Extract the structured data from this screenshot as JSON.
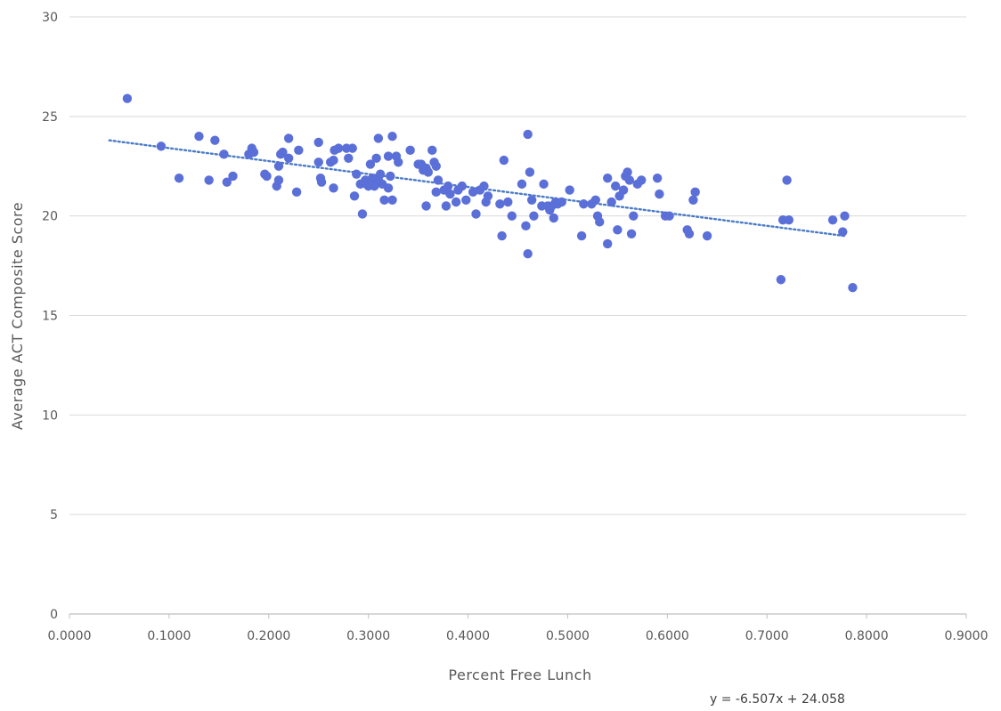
{
  "chart_data": {
    "type": "scatter",
    "title": "",
    "xlabel": "Percent Free Lunch",
    "ylabel": "Average ACT Composite Score",
    "xlim": [
      0,
      0.9
    ],
    "ylim": [
      0,
      30
    ],
    "x_ticks": [
      "0.0000",
      "0.1000",
      "0.2000",
      "0.3000",
      "0.4000",
      "0.5000",
      "0.6000",
      "0.7000",
      "0.8000",
      "0.9000"
    ],
    "y_ticks": [
      "0",
      "5",
      "10",
      "15",
      "20",
      "25",
      "30"
    ],
    "grid": "horizontal",
    "point_color": "#5b6fd8",
    "trendline": {
      "style": "dotted",
      "color": "#4a7bc8",
      "slope": -6.507,
      "intercept": 24.058,
      "x_range": [
        0.04,
        0.78
      ],
      "equation_label": "y = -6.507x + 24.058"
    },
    "points": [
      [
        0.058,
        25.9
      ],
      [
        0.092,
        23.5
      ],
      [
        0.11,
        21.9
      ],
      [
        0.13,
        24.0
      ],
      [
        0.14,
        21.8
      ],
      [
        0.146,
        23.8
      ],
      [
        0.155,
        23.1
      ],
      [
        0.158,
        21.7
      ],
      [
        0.164,
        22.0
      ],
      [
        0.18,
        23.1
      ],
      [
        0.183,
        23.4
      ],
      [
        0.185,
        23.2
      ],
      [
        0.196,
        22.1
      ],
      [
        0.198,
        22.0
      ],
      [
        0.208,
        21.5
      ],
      [
        0.21,
        21.8
      ],
      [
        0.21,
        22.5
      ],
      [
        0.212,
        23.1
      ],
      [
        0.214,
        23.2
      ],
      [
        0.22,
        23.9
      ],
      [
        0.22,
        22.9
      ],
      [
        0.228,
        21.2
      ],
      [
        0.23,
        23.3
      ],
      [
        0.25,
        23.7
      ],
      [
        0.25,
        22.7
      ],
      [
        0.252,
        21.9
      ],
      [
        0.253,
        21.7
      ],
      [
        0.262,
        22.7
      ],
      [
        0.265,
        21.4
      ],
      [
        0.265,
        22.8
      ],
      [
        0.266,
        23.3
      ],
      [
        0.27,
        23.4
      ],
      [
        0.278,
        23.4
      ],
      [
        0.28,
        22.9
      ],
      [
        0.284,
        23.4
      ],
      [
        0.286,
        21.0
      ],
      [
        0.288,
        22.1
      ],
      [
        0.292,
        21.6
      ],
      [
        0.294,
        20.1
      ],
      [
        0.297,
        21.8
      ],
      [
        0.298,
        21.6
      ],
      [
        0.3,
        21.5
      ],
      [
        0.302,
        22.6
      ],
      [
        0.304,
        21.9
      ],
      [
        0.306,
        21.5
      ],
      [
        0.308,
        22.9
      ],
      [
        0.31,
        23.9
      ],
      [
        0.31,
        21.8
      ],
      [
        0.312,
        22.1
      ],
      [
        0.314,
        21.6
      ],
      [
        0.316,
        20.8
      ],
      [
        0.32,
        23.0
      ],
      [
        0.32,
        21.4
      ],
      [
        0.322,
        22.0
      ],
      [
        0.324,
        20.8
      ],
      [
        0.324,
        24.0
      ],
      [
        0.328,
        23.0
      ],
      [
        0.33,
        22.7
      ],
      [
        0.342,
        23.3
      ],
      [
        0.35,
        22.6
      ],
      [
        0.353,
        22.6
      ],
      [
        0.355,
        22.3
      ],
      [
        0.358,
        22.4
      ],
      [
        0.358,
        20.5
      ],
      [
        0.36,
        22.2
      ],
      [
        0.364,
        23.3
      ],
      [
        0.366,
        22.7
      ],
      [
        0.368,
        22.5
      ],
      [
        0.368,
        21.2
      ],
      [
        0.37,
        21.8
      ],
      [
        0.376,
        21.3
      ],
      [
        0.378,
        20.5
      ],
      [
        0.38,
        21.5
      ],
      [
        0.382,
        21.1
      ],
      [
        0.388,
        20.7
      ],
      [
        0.39,
        21.3
      ],
      [
        0.394,
        21.5
      ],
      [
        0.398,
        20.8
      ],
      [
        0.405,
        21.2
      ],
      [
        0.408,
        20.1
      ],
      [
        0.412,
        21.3
      ],
      [
        0.416,
        21.5
      ],
      [
        0.418,
        20.7
      ],
      [
        0.42,
        21.0
      ],
      [
        0.432,
        20.6
      ],
      [
        0.434,
        19.0
      ],
      [
        0.436,
        22.8
      ],
      [
        0.44,
        20.7
      ],
      [
        0.444,
        20.0
      ],
      [
        0.454,
        21.6
      ],
      [
        0.458,
        19.5
      ],
      [
        0.46,
        18.1
      ],
      [
        0.46,
        24.1
      ],
      [
        0.462,
        22.2
      ],
      [
        0.464,
        20.8
      ],
      [
        0.466,
        20.0
      ],
      [
        0.474,
        20.5
      ],
      [
        0.476,
        21.6
      ],
      [
        0.48,
        20.5
      ],
      [
        0.482,
        20.3
      ],
      [
        0.484,
        20.5
      ],
      [
        0.486,
        19.9
      ],
      [
        0.488,
        20.7
      ],
      [
        0.49,
        20.6
      ],
      [
        0.494,
        20.7
      ],
      [
        0.502,
        21.3
      ],
      [
        0.514,
        19.0
      ],
      [
        0.516,
        20.6
      ],
      [
        0.524,
        20.6
      ],
      [
        0.528,
        20.8
      ],
      [
        0.53,
        20.0
      ],
      [
        0.532,
        19.7
      ],
      [
        0.54,
        18.6
      ],
      [
        0.54,
        21.9
      ],
      [
        0.544,
        20.7
      ],
      [
        0.548,
        21.5
      ],
      [
        0.55,
        19.3
      ],
      [
        0.552,
        21.0
      ],
      [
        0.556,
        21.3
      ],
      [
        0.558,
        22.0
      ],
      [
        0.56,
        22.2
      ],
      [
        0.562,
        21.8
      ],
      [
        0.564,
        19.1
      ],
      [
        0.566,
        20.0
      ],
      [
        0.57,
        21.6
      ],
      [
        0.574,
        21.8
      ],
      [
        0.59,
        21.9
      ],
      [
        0.592,
        21.1
      ],
      [
        0.598,
        20.0
      ],
      [
        0.602,
        20.0
      ],
      [
        0.62,
        19.3
      ],
      [
        0.622,
        19.1
      ],
      [
        0.626,
        20.8
      ],
      [
        0.628,
        21.2
      ],
      [
        0.64,
        19.0
      ],
      [
        0.714,
        16.8
      ],
      [
        0.716,
        19.8
      ],
      [
        0.72,
        21.8
      ],
      [
        0.722,
        19.8
      ],
      [
        0.766,
        19.8
      ],
      [
        0.776,
        19.2
      ],
      [
        0.778,
        20.0
      ],
      [
        0.786,
        16.4
      ]
    ]
  }
}
